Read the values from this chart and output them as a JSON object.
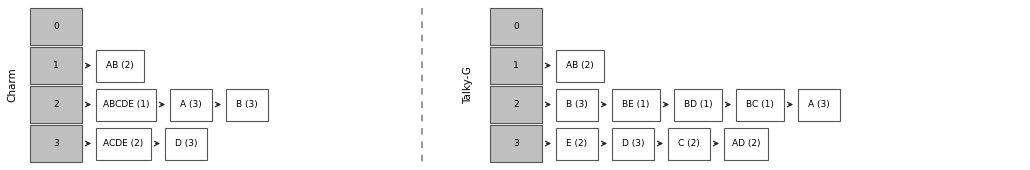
{
  "charm_label": "Charm",
  "talky_label": "Talky-G",
  "charm_hash_rows": [
    "0",
    "1",
    "2",
    "3"
  ],
  "talky_hash_rows": [
    "0",
    "1",
    "2",
    "3"
  ],
  "charm_chains": {
    "0": [],
    "1": [
      "AB (2)"
    ],
    "2": [
      "ABCDE (1)",
      "A (3)",
      "B (3)"
    ],
    "3": [
      "ACDE (2)",
      "D (3)"
    ]
  },
  "talky_chains": {
    "0": [],
    "1": [
      "AB (2)"
    ],
    "2": [
      "B (3)",
      "BE (1)",
      "BD (1)",
      "BC (1)",
      "A (3)"
    ],
    "3": [
      "E (2)",
      "D (3)",
      "C (2)",
      "AD (2)"
    ]
  },
  "hash_box_color": "#c0c0c0",
  "chain_box_color": "#ffffff",
  "box_edge_color": "#555555",
  "text_color": "#000000",
  "arrow_color": "#222222",
  "divider_color": "#888888",
  "background_color": "#ffffff",
  "font_size": 6.5,
  "label_font_size": 7.5
}
